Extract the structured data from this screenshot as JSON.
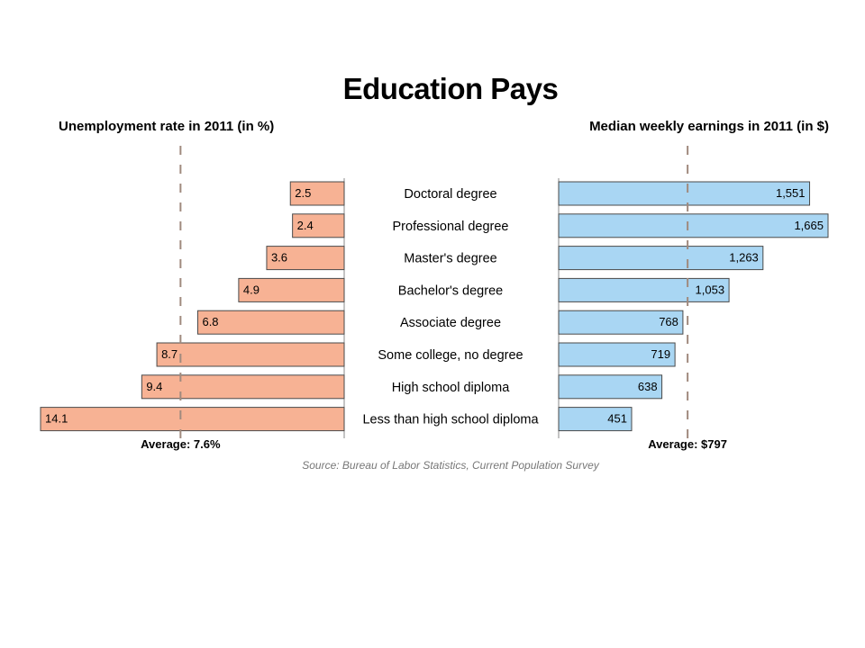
{
  "chart_data": {
    "type": "bar",
    "title": "Education Pays",
    "categories": [
      "Doctoral degree",
      "Professional degree",
      "Master's degree",
      "Bachelor's degree",
      "Associate degree",
      "Some college, no degree",
      "High school diploma",
      "Less than high school diploma"
    ],
    "panels": [
      {
        "id": "unemployment",
        "title": "Unemployment rate in 2011 (in %)",
        "direction": "left",
        "values": [
          2.5,
          2.4,
          3.6,
          4.9,
          6.8,
          8.7,
          9.4,
          14.1
        ],
        "value_labels": [
          "2.5",
          "2.4",
          "3.6",
          "4.9",
          "6.8",
          "8.7",
          "9.4",
          "14.1"
        ],
        "average": 7.6,
        "average_label": "Average: 7.6%",
        "xlim": [
          0,
          14.1
        ],
        "bar_color": "#f7b294",
        "grid": false
      },
      {
        "id": "earnings",
        "title": "Median weekly earnings in 2011 (in $)",
        "direction": "right",
        "values": [
          1551,
          1665,
          1263,
          1053,
          768,
          719,
          638,
          451
        ],
        "value_labels": [
          "1,551",
          "1,665",
          "1,263",
          "1,053",
          "768",
          "719",
          "638",
          "451"
        ],
        "average": 797,
        "average_label": "Average: $797",
        "xlim": [
          0,
          1665
        ],
        "bar_color": "#a9d6f3",
        "grid": false
      }
    ],
    "source": "Source: Bureau of Labor Statistics, Current Population Survey"
  },
  "colors": {
    "bar_edge": "#4a4a4a",
    "average_line": "#a08a7e",
    "axis_line": "#8a8a8a"
  }
}
